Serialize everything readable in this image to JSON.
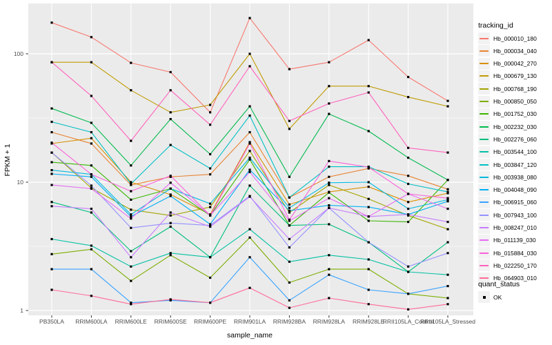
{
  "page": {
    "background": "#FFFFFF",
    "panel_color": "#EBEBEB",
    "grid_color": "#FFFFFF",
    "tick_text_color": "#4D4D4D",
    "axis_tick_color": "#333333",
    "point_color": "#000000"
  },
  "chart_data": {
    "type": "line",
    "title": "",
    "xlabel": "sample_name",
    "ylabel": "FPKM + 1",
    "y_scale": "log10",
    "y_ticks": [
      1,
      10,
      100
    ],
    "y_tick_labels": [
      "1",
      "10",
      "100"
    ],
    "y_minor_ticks": [
      3.1623,
      31.623
    ],
    "ylim": [
      1,
      210
    ],
    "grid": "white major/minor on gray panel",
    "point_shape": "small black square on every data point",
    "x_categories": [
      "PB350LA",
      "RRIM600LA",
      "RRIM600LE",
      "RRIM600SE",
      "RRIM600PE",
      "RRIM901LA",
      "RRIM928BA",
      "RRIM928LA",
      "RRIM928LE",
      "RRII105LA_Control",
      "RRII105LA_Stressed"
    ],
    "legend": {
      "title": "tracking_id",
      "position": "right"
    },
    "quant_legend": {
      "title": "quant_status",
      "items": [
        "OK"
      ]
    },
    "series": [
      {
        "name": "Hb_000010_180",
        "color": "#F8766D",
        "values": [
          175,
          135,
          85,
          72,
          35,
          190,
          76,
          86,
          128,
          66,
          43
        ]
      },
      {
        "name": "Hb_000034_040",
        "color": "#EA8331",
        "values": [
          24.5,
          20,
          9.5,
          11,
          11.5,
          24.5,
          7.6,
          11,
          12.8,
          11.2,
          8.8
        ]
      },
      {
        "name": "Hb_000042_270",
        "color": "#D89000",
        "values": [
          20,
          22,
          10,
          8,
          5.6,
          20.5,
          6.7,
          8.4,
          9.2,
          7.0,
          8.2
        ]
      },
      {
        "name": "Hb_000679_130",
        "color": "#C09B00",
        "values": [
          86,
          86,
          52,
          35,
          40,
          100,
          26,
          56,
          56,
          46,
          39
        ]
      },
      {
        "name": "Hb_000768_190",
        "color": "#A3A500",
        "values": [
          17,
          9,
          6.1,
          5.5,
          6.4,
          17.5,
          5.8,
          9.5,
          7.4,
          5.5,
          4.3
        ]
      },
      {
        "name": "Hb_000850_050",
        "color": "#7CAE00",
        "values": [
          2.75,
          3.0,
          1.7,
          2.7,
          1.8,
          3.7,
          1.65,
          2.1,
          2.1,
          1.35,
          1.25
        ]
      },
      {
        "name": "Hb_001752_030",
        "color": "#39B600",
        "values": [
          14.3,
          13.5,
          7.3,
          8.9,
          5.5,
          15,
          4.6,
          8.3,
          5.0,
          4.9,
          10.4
        ]
      },
      {
        "name": "Hb_002232_030",
        "color": "#00BB4E",
        "values": [
          37.5,
          29,
          13.5,
          31,
          16.5,
          39,
          11,
          34,
          25,
          15.5,
          10.4
        ]
      },
      {
        "name": "Hb_002276_060",
        "color": "#00BF7D",
        "values": [
          7.0,
          5.8,
          2.9,
          4.5,
          2.6,
          9.4,
          4.6,
          4.7,
          3.4,
          2.0,
          3.4
        ]
      },
      {
        "name": "Hb_003544_100",
        "color": "#00C1A3",
        "values": [
          3.6,
          3.2,
          2.2,
          2.8,
          2.6,
          4.3,
          2.4,
          2.7,
          2.5,
          2.0,
          1.9
        ]
      },
      {
        "name": "Hb_003847_120",
        "color": "#00BFC4",
        "values": [
          29.5,
          24.5,
          9.7,
          19.5,
          12.8,
          33,
          7.6,
          13.2,
          13.2,
          9.7,
          8.4
        ]
      },
      {
        "name": "Hb_003938_080",
        "color": "#00BAE0",
        "values": [
          12.4,
          11.5,
          5.6,
          8.9,
          6.8,
          15.5,
          6.3,
          9.9,
          10.0,
          6.2,
          7.3
        ]
      },
      {
        "name": "Hb_004048_090",
        "color": "#00B0F6",
        "values": [
          11.6,
          11,
          5.4,
          7.8,
          4.7,
          12.5,
          6.0,
          6.6,
          6.4,
          5.6,
          7.1
        ]
      },
      {
        "name": "Hb_006915_060",
        "color": "#35A2FF",
        "values": [
          2.1,
          2.1,
          1.15,
          1.2,
          1.15,
          2.6,
          1.2,
          1.9,
          1.45,
          1.35,
          1.55
        ]
      },
      {
        "name": "Hb_007943_100",
        "color": "#9590FF",
        "values": [
          17,
          9.4,
          4.4,
          4.8,
          4.6,
          7.8,
          3.1,
          6.3,
          3.4,
          2.2,
          2.8
        ]
      },
      {
        "name": "Hb_008247_010",
        "color": "#C77CFF",
        "values": [
          6.5,
          6.2,
          2.6,
          5.8,
          4.5,
          7.7,
          3.6,
          6.3,
          5.4,
          5.6,
          4.9
        ]
      },
      {
        "name": "Hb_011139_030",
        "color": "#E76BF3",
        "values": [
          9.5,
          8.9,
          5.2,
          9.9,
          5.5,
          12,
          5.0,
          7.5,
          5.4,
          8.1,
          6.2
        ]
      },
      {
        "name": "Hb_015884_030",
        "color": "#FA62DB",
        "values": [
          20.3,
          11.5,
          8.5,
          11.2,
          5.5,
          20,
          5.1,
          14.6,
          13.1,
          8.1,
          7.5
        ]
      },
      {
        "name": "Hb_022250_170",
        "color": "#FF62BC",
        "values": [
          86,
          47,
          21,
          52,
          28,
          80,
          30,
          41,
          50,
          18.5,
          17
        ]
      },
      {
        "name": "Hb_064903_010",
        "color": "#FF6A98",
        "values": [
          1.45,
          1.3,
          1.12,
          1.22,
          1.15,
          1.5,
          1.05,
          1.25,
          1.12,
          1.02,
          1.12
        ]
      }
    ]
  }
}
